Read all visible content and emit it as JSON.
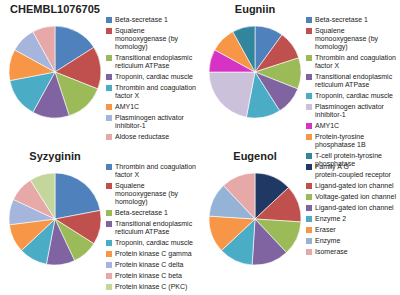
{
  "chart_data": [
    {
      "type": "pie",
      "title": "CHEMBL1076705",
      "legend": "right",
      "categories": [
        "Beta-secretase 1",
        "Squalene monooxygenase (by homology)",
        "Transitional endoplasmic reticulum ATPase",
        "Troponin, cardiac muscle",
        "Thrombin and coagulation factor X",
        "AMY1C",
        "Plasminogen activator inhibitor-1",
        "Aldose reductase"
      ],
      "values": [
        16,
        15,
        14,
        13,
        14,
        11,
        9,
        8
      ],
      "colors": [
        "#4F81BD",
        "#C0504D",
        "#9BBB59",
        "#8064A2",
        "#4BACC6",
        "#F79646",
        "#A5B5DB",
        "#E6A9A8"
      ]
    },
    {
      "type": "pie",
      "title": "Eugniin",
      "legend": "right",
      "categories": [
        "Beta-secretase 1",
        "Squalene monooxygenase (by homology)",
        "Thrombin and coagulation factor X",
        "Transitional endoplasmic reticulum ATPase",
        "Troponin, cardiac muscle",
        "Plasminogen activator inhibitor-1",
        "AMY1C",
        "Protein-tyrosine phosphatase 1B",
        "T-cell protein-tyrosine phosphatase"
      ],
      "values": [
        10,
        10,
        11,
        10,
        12,
        22,
        8,
        9,
        8
      ],
      "colors": [
        "#4F81BD",
        "#C0504D",
        "#9BBB59",
        "#8064A2",
        "#4BACC6",
        "#CCC1DA",
        "#D633C6",
        "#F79646",
        "#31859C"
      ]
    },
    {
      "type": "pie",
      "title": "Syzyginin",
      "legend": "right",
      "categories": [
        "Thrombin and coagulation factor X",
        "Squalene monooxygenase (by homology)",
        "Beta-secretase 1",
        "Transitional endoplasmic reticulum ATPase",
        "Troponin, cardiac muscle",
        "Protein kinase C gamma",
        "Protein kinase C delta",
        "Protein kinase C beta",
        "Protein kinase C (PKC)"
      ],
      "values": [
        22,
        12,
        9,
        10,
        10,
        10,
        9,
        9,
        9
      ],
      "colors": [
        "#4F81BD",
        "#C0504D",
        "#9BBB59",
        "#8064A2",
        "#4BACC6",
        "#F79646",
        "#A5B5DB",
        "#E6A9A8",
        "#C3D69B"
      ]
    },
    {
      "type": "pie",
      "title": "Eugenol",
      "legend": "right",
      "categories": [
        "Family A G protein-coupled receptor",
        "Ligand-gated ion channel",
        "Voltage-gated ion channel",
        "Ligand-gated ion channel",
        "Enzyme 2",
        "Eraser",
        "Enzyme",
        "Isomerase"
      ],
      "values": [
        13,
        13,
        12,
        13,
        12,
        13,
        12,
        12
      ],
      "colors": [
        "#1F3864",
        "#C0504D",
        "#9BBB59",
        "#8064A2",
        "#4BACC6",
        "#F79646",
        "#95B3D7",
        "#E6A9A8"
      ]
    }
  ]
}
